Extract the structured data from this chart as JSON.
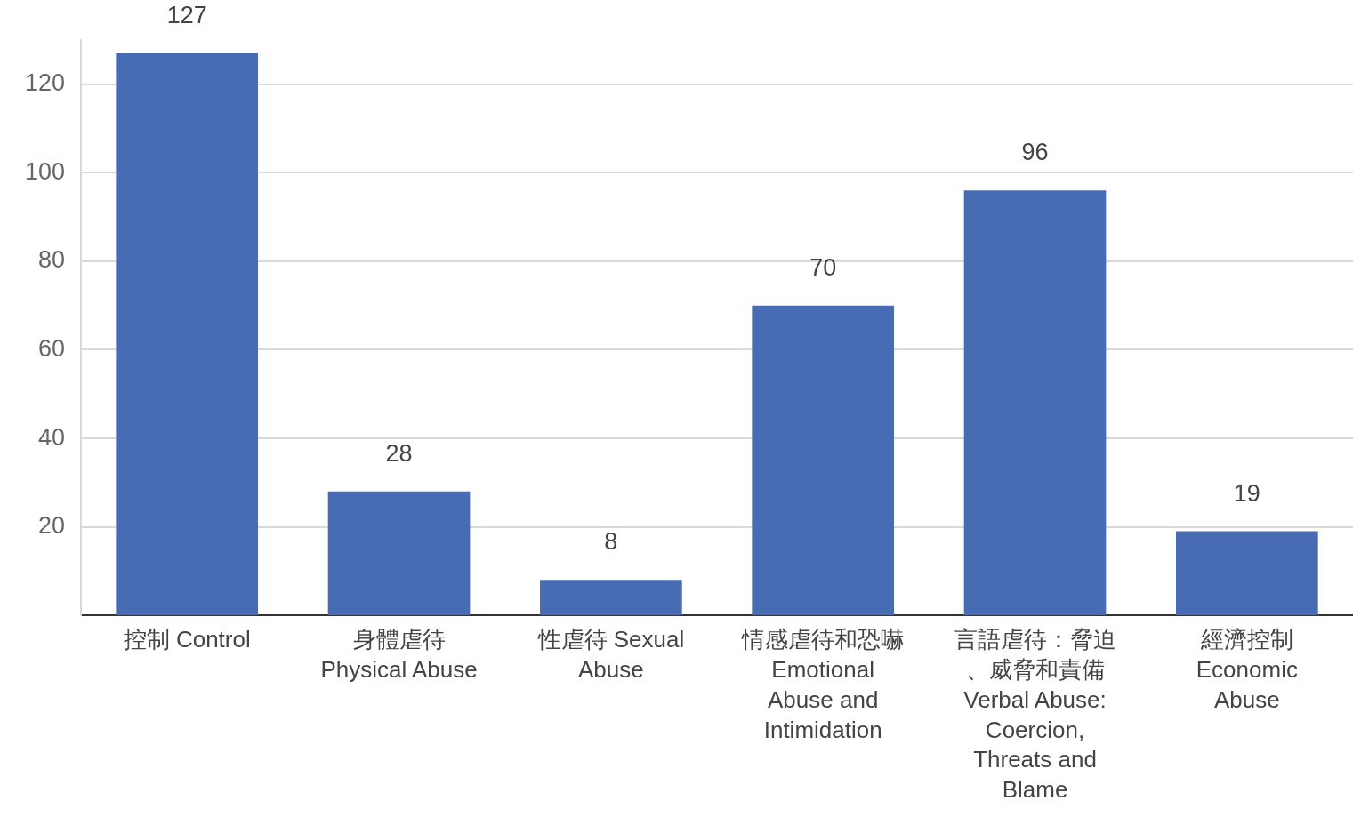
{
  "chart_data": {
    "type": "bar",
    "categories": [
      "控制 Control",
      "身體虐待 Physical Abuse",
      "性虐待 Sexual Abuse",
      "情感虐待和恐嚇 Emotional Abuse and Intimidation",
      "言語虐待：脅迫、威脅和責備 Verbal Abuse: Coercion, Threats and Blame",
      "經濟控制 Economic Abuse"
    ],
    "values": [
      127,
      28,
      8,
      70,
      96,
      19
    ],
    "color": "#476cb3",
    "ylim": [
      0,
      130
    ],
    "yticks": [
      20,
      40,
      60,
      80,
      100,
      120
    ],
    "grid": "y",
    "data_labels": true,
    "legend": false
  }
}
